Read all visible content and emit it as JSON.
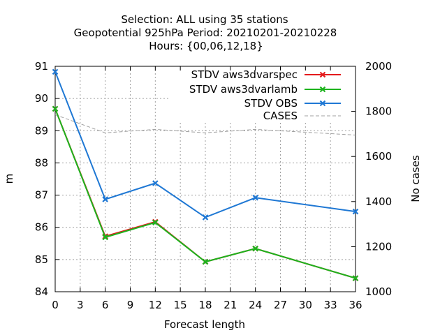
{
  "chart_data": {
    "type": "line",
    "title_lines": [
      "Selection: ALL using    35 stations",
      "Geopotential 925hPa   Period: 20210201-20210228",
      "Hours: {00,06,12,18}"
    ],
    "xlabel": "Forecast length",
    "ylabel": "m",
    "y2label": "No cases",
    "xlim": [
      0,
      36
    ],
    "ylim": [
      84,
      91
    ],
    "y2lim": [
      1000,
      2000
    ],
    "x_ticks": [
      "0",
      "3",
      "6",
      "9",
      "12",
      "15",
      "18",
      "21",
      "24",
      "27",
      "30",
      "33",
      "36"
    ],
    "y_ticks": [
      "84",
      "85",
      "86",
      "87",
      "88",
      "89",
      "90",
      "91"
    ],
    "y2_ticks": [
      "1000",
      "1200",
      "1400",
      "1600",
      "1800",
      "2000"
    ],
    "grid": true,
    "legend_position": "top-right",
    "series": [
      {
        "name": "STDV aws3dvarspec",
        "color": "#e41a1c",
        "axis": "y1",
        "x": [
          0,
          6,
          12,
          18,
          24,
          36
        ],
        "values": [
          89.68,
          85.72,
          86.17,
          84.93,
          85.34,
          84.42
        ]
      },
      {
        "name": "STDV aws3dvarlamb",
        "color": "#1db31d",
        "axis": "y1",
        "x": [
          0,
          6,
          12,
          18,
          24,
          36
        ],
        "values": [
          89.68,
          85.69,
          86.15,
          84.93,
          85.34,
          84.42
        ]
      },
      {
        "name": "STDV OBS",
        "color": "#1f78d4",
        "axis": "y1",
        "x": [
          0,
          6,
          12,
          18,
          24,
          36
        ],
        "values": [
          90.83,
          86.87,
          87.37,
          86.31,
          86.92,
          86.49
        ]
      },
      {
        "name": "CASES",
        "color": "#a0a0a0",
        "axis": "y2",
        "dashed": true,
        "x": [
          0,
          6,
          12,
          18,
          24,
          36
        ],
        "values": [
          1785,
          1705,
          1720,
          1705,
          1720,
          1695
        ]
      }
    ]
  }
}
